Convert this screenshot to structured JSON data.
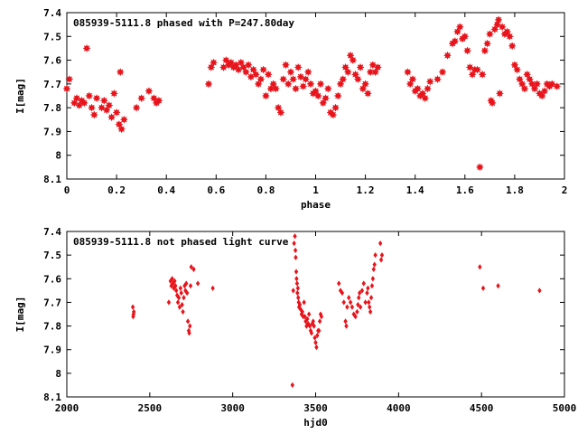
{
  "chart_data": [
    {
      "type": "scatter",
      "title": "085939-5111.8 phased with P=247.80day",
      "xlabel": "phase",
      "ylabel": "I[mag]",
      "xlim": [
        0,
        2
      ],
      "ylim": [
        7.4,
        8.1
      ],
      "y_inverted": true,
      "xticks": [
        "0",
        "0.2",
        "0.4",
        "0.6",
        "0.8",
        "1",
        "1.2",
        "1.4",
        "1.6",
        "1.8",
        "2"
      ],
      "xtick_values": [
        0,
        0.2,
        0.4,
        0.6,
        0.8,
        1.0,
        1.2,
        1.4,
        1.6,
        1.8,
        2.0
      ],
      "yticks": [
        "7.4",
        "7.5",
        "7.6",
        "7.7",
        "7.8",
        "7.9",
        "8",
        "8.1"
      ],
      "ytick_values": [
        7.4,
        7.5,
        7.6,
        7.7,
        7.8,
        7.9,
        8.0,
        8.1
      ],
      "color": "#e8141c",
      "marker": "star",
      "points": [
        [
          0.0,
          7.72
        ],
        [
          0.01,
          7.68
        ],
        [
          0.03,
          7.78
        ],
        [
          0.04,
          7.76
        ],
        [
          0.05,
          7.79
        ],
        [
          0.06,
          7.77
        ],
        [
          0.07,
          7.78
        ],
        [
          0.08,
          7.55
        ],
        [
          0.09,
          7.75
        ],
        [
          0.1,
          7.8
        ],
        [
          0.11,
          7.83
        ],
        [
          0.12,
          7.76
        ],
        [
          0.14,
          7.8
        ],
        [
          0.15,
          7.77
        ],
        [
          0.16,
          7.81
        ],
        [
          0.17,
          7.79
        ],
        [
          0.18,
          7.84
        ],
        [
          0.19,
          7.74
        ],
        [
          0.2,
          7.82
        ],
        [
          0.21,
          7.87
        ],
        [
          0.215,
          7.65
        ],
        [
          0.22,
          7.89
        ],
        [
          0.23,
          7.85
        ],
        [
          0.28,
          7.8
        ],
        [
          0.3,
          7.76
        ],
        [
          0.33,
          7.73
        ],
        [
          0.35,
          7.76
        ],
        [
          0.36,
          7.78
        ],
        [
          0.37,
          7.77
        ],
        [
          0.57,
          7.7
        ],
        [
          0.58,
          7.63
        ],
        [
          0.59,
          7.61
        ],
        [
          0.63,
          7.63
        ],
        [
          0.64,
          7.6
        ],
        [
          0.65,
          7.62
        ],
        [
          0.66,
          7.61
        ],
        [
          0.67,
          7.63
        ],
        [
          0.68,
          7.62
        ],
        [
          0.69,
          7.64
        ],
        [
          0.7,
          7.61
        ],
        [
          0.71,
          7.63
        ],
        [
          0.72,
          7.65
        ],
        [
          0.73,
          7.62
        ],
        [
          0.74,
          7.67
        ],
        [
          0.75,
          7.64
        ],
        [
          0.76,
          7.66
        ],
        [
          0.77,
          7.7
        ],
        [
          0.78,
          7.68
        ],
        [
          0.79,
          7.64
        ],
        [
          0.8,
          7.75
        ],
        [
          0.81,
          7.66
        ],
        [
          0.82,
          7.72
        ],
        [
          0.83,
          7.7
        ],
        [
          0.84,
          7.72
        ],
        [
          0.85,
          7.8
        ],
        [
          0.86,
          7.82
        ],
        [
          0.87,
          7.68
        ],
        [
          0.88,
          7.62
        ],
        [
          0.89,
          7.7
        ],
        [
          0.9,
          7.65
        ],
        [
          0.91,
          7.68
        ],
        [
          0.92,
          7.72
        ],
        [
          0.93,
          7.63
        ],
        [
          0.94,
          7.67
        ],
        [
          0.95,
          7.71
        ],
        [
          0.96,
          7.68
        ],
        [
          0.97,
          7.65
        ],
        [
          0.98,
          7.7
        ],
        [
          0.99,
          7.74
        ],
        [
          1.0,
          7.73
        ],
        [
          1.01,
          7.75
        ],
        [
          1.02,
          7.7
        ],
        [
          1.03,
          7.78
        ],
        [
          1.04,
          7.76
        ],
        [
          1.05,
          7.72
        ],
        [
          1.06,
          7.82
        ],
        [
          1.07,
          7.83
        ],
        [
          1.08,
          7.8
        ],
        [
          1.09,
          7.75
        ],
        [
          1.1,
          7.7
        ],
        [
          1.11,
          7.68
        ],
        [
          1.12,
          7.63
        ],
        [
          1.13,
          7.65
        ],
        [
          1.14,
          7.58
        ],
        [
          1.15,
          7.6
        ],
        [
          1.16,
          7.66
        ],
        [
          1.17,
          7.68
        ],
        [
          1.18,
          7.63
        ],
        [
          1.19,
          7.72
        ],
        [
          1.2,
          7.7
        ],
        [
          1.21,
          7.74
        ],
        [
          1.22,
          7.65
        ],
        [
          1.23,
          7.62
        ],
        [
          1.24,
          7.65
        ],
        [
          1.25,
          7.63
        ],
        [
          1.37,
          7.65
        ],
        [
          1.38,
          7.7
        ],
        [
          1.39,
          7.68
        ],
        [
          1.4,
          7.73
        ],
        [
          1.41,
          7.72
        ],
        [
          1.42,
          7.75
        ],
        [
          1.43,
          7.74
        ],
        [
          1.44,
          7.76
        ],
        [
          1.45,
          7.72
        ],
        [
          1.46,
          7.69
        ],
        [
          1.49,
          7.68
        ],
        [
          1.51,
          7.65
        ],
        [
          1.53,
          7.58
        ],
        [
          1.55,
          7.53
        ],
        [
          1.56,
          7.52
        ],
        [
          1.57,
          7.48
        ],
        [
          1.58,
          7.46
        ],
        [
          1.59,
          7.51
        ],
        [
          1.6,
          7.5
        ],
        [
          1.61,
          7.56
        ],
        [
          1.62,
          7.63
        ],
        [
          1.63,
          7.66
        ],
        [
          1.64,
          7.64
        ],
        [
          1.65,
          7.64
        ],
        [
          1.66,
          8.05
        ],
        [
          1.67,
          7.66
        ],
        [
          1.68,
          7.56
        ],
        [
          1.69,
          7.53
        ],
        [
          1.7,
          7.49
        ],
        [
          1.705,
          7.77
        ],
        [
          1.71,
          7.78
        ],
        [
          1.72,
          7.47
        ],
        [
          1.73,
          7.45
        ],
        [
          1.735,
          7.43
        ],
        [
          1.74,
          7.74
        ],
        [
          1.75,
          7.46
        ],
        [
          1.76,
          7.49
        ],
        [
          1.77,
          7.48
        ],
        [
          1.78,
          7.5
        ],
        [
          1.79,
          7.54
        ],
        [
          1.8,
          7.62
        ],
        [
          1.81,
          7.64
        ],
        [
          1.82,
          7.68
        ],
        [
          1.83,
          7.7
        ],
        [
          1.84,
          7.72
        ],
        [
          1.85,
          7.66
        ],
        [
          1.86,
          7.68
        ],
        [
          1.87,
          7.7
        ],
        [
          1.88,
          7.72
        ],
        [
          1.89,
          7.7
        ],
        [
          1.9,
          7.74
        ],
        [
          1.91,
          7.75
        ],
        [
          1.92,
          7.73
        ],
        [
          1.93,
          7.7
        ],
        [
          1.94,
          7.71
        ],
        [
          1.95,
          7.7
        ],
        [
          1.97,
          7.71
        ]
      ]
    },
    {
      "type": "scatter",
      "title": "085939-5111.8 not phased light curve",
      "xlabel": "hjd0",
      "ylabel": "I[mag]",
      "xlim": [
        2000,
        5000
      ],
      "ylim": [
        7.4,
        8.1
      ],
      "y_inverted": true,
      "xticks": [
        "2000",
        "2500",
        "3000",
        "3500",
        "4000",
        "4500",
        "5000"
      ],
      "xtick_values": [
        2000,
        2500,
        3000,
        3500,
        4000,
        4500,
        5000
      ],
      "yticks": [
        "7.4",
        "7.5",
        "7.6",
        "7.7",
        "7.8",
        "7.9",
        "8",
        "8.1"
      ],
      "ytick_values": [
        7.4,
        7.5,
        7.6,
        7.7,
        7.8,
        7.9,
        8.0,
        8.1
      ],
      "color": "#e8141c",
      "marker": "diamond",
      "points": [
        [
          2398,
          7.72
        ],
        [
          2400,
          7.76
        ],
        [
          2402,
          7.75
        ],
        [
          2404,
          7.74
        ],
        [
          2615,
          7.7
        ],
        [
          2625,
          7.61
        ],
        [
          2630,
          7.63
        ],
        [
          2635,
          7.6
        ],
        [
          2640,
          7.62
        ],
        [
          2645,
          7.64
        ],
        [
          2650,
          7.61
        ],
        [
          2655,
          7.63
        ],
        [
          2660,
          7.65
        ],
        [
          2665,
          7.67
        ],
        [
          2670,
          7.7
        ],
        [
          2675,
          7.68
        ],
        [
          2680,
          7.72
        ],
        [
          2685,
          7.64
        ],
        [
          2690,
          7.66
        ],
        [
          2695,
          7.71
        ],
        [
          2700,
          7.74
        ],
        [
          2705,
          7.68
        ],
        [
          2710,
          7.63
        ],
        [
          2715,
          7.65
        ],
        [
          2720,
          7.62
        ],
        [
          2725,
          7.66
        ],
        [
          2730,
          7.78
        ],
        [
          2735,
          7.82
        ],
        [
          2738,
          7.83
        ],
        [
          2742,
          7.8
        ],
        [
          2746,
          7.63
        ],
        [
          2750,
          7.55
        ],
        [
          2765,
          7.56
        ],
        [
          2790,
          7.62
        ],
        [
          2880,
          7.64
        ],
        [
          3370,
          7.45
        ],
        [
          3375,
          7.42
        ],
        [
          3378,
          7.48
        ],
        [
          3380,
          7.51
        ],
        [
          3383,
          7.57
        ],
        [
          3385,
          7.6
        ],
        [
          3388,
          7.62
        ],
        [
          3390,
          7.66
        ],
        [
          3393,
          7.64
        ],
        [
          3395,
          7.68
        ],
        [
          3398,
          7.7
        ],
        [
          3400,
          7.72
        ],
        [
          3405,
          7.71
        ],
        [
          3410,
          7.73
        ],
        [
          3415,
          7.75
        ],
        [
          3420,
          7.74
        ],
        [
          3425,
          7.76
        ],
        [
          3430,
          7.7
        ],
        [
          3435,
          7.76
        ],
        [
          3440,
          7.78
        ],
        [
          3445,
          7.8
        ],
        [
          3450,
          7.77
        ],
        [
          3455,
          7.79
        ],
        [
          3460,
          7.75
        ],
        [
          3465,
          7.8
        ],
        [
          3470,
          7.82
        ],
        [
          3475,
          7.83
        ],
        [
          3480,
          7.79
        ],
        [
          3485,
          7.78
        ],
        [
          3490,
          7.8
        ],
        [
          3495,
          7.85
        ],
        [
          3500,
          7.87
        ],
        [
          3505,
          7.89
        ],
        [
          3510,
          7.84
        ],
        [
          3515,
          7.82
        ],
        [
          3520,
          7.82
        ],
        [
          3525,
          7.78
        ],
        [
          3530,
          7.75
        ],
        [
          3535,
          7.76
        ],
        [
          3360,
          8.05
        ],
        [
          3365,
          7.65
        ],
        [
          3640,
          7.62
        ],
        [
          3650,
          7.65
        ],
        [
          3660,
          7.66
        ],
        [
          3670,
          7.7
        ],
        [
          3680,
          7.78
        ],
        [
          3685,
          7.8
        ],
        [
          3690,
          7.72
        ],
        [
          3700,
          7.68
        ],
        [
          3710,
          7.7
        ],
        [
          3720,
          7.72
        ],
        [
          3730,
          7.75
        ],
        [
          3740,
          7.76
        ],
        [
          3750,
          7.74
        ],
        [
          3755,
          7.71
        ],
        [
          3760,
          7.68
        ],
        [
          3765,
          7.66
        ],
        [
          3770,
          7.72
        ],
        [
          3780,
          7.65
        ],
        [
          3790,
          7.62
        ],
        [
          3800,
          7.7
        ],
        [
          3810,
          7.66
        ],
        [
          3815,
          7.64
        ],
        [
          3820,
          7.7
        ],
        [
          3825,
          7.72
        ],
        [
          3830,
          7.74
        ],
        [
          3835,
          7.68
        ],
        [
          3840,
          7.63
        ],
        [
          3845,
          7.6
        ],
        [
          3850,
          7.56
        ],
        [
          3855,
          7.54
        ],
        [
          3860,
          7.5
        ],
        [
          3890,
          7.45
        ],
        [
          3895,
          7.52
        ],
        [
          3900,
          7.5
        ],
        [
          4490,
          7.55
        ],
        [
          4510,
          7.64
        ],
        [
          4600,
          7.63
        ],
        [
          4850,
          7.65
        ]
      ]
    }
  ]
}
